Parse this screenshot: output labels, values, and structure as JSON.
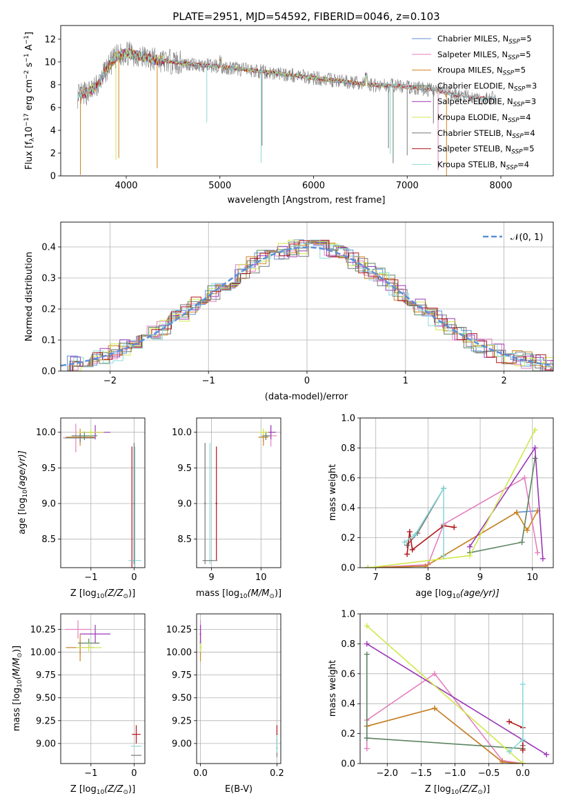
{
  "figure": {
    "title": "PLATE=2951, MJD=54592, FIBERID=0046, z=0.103"
  },
  "colors": {
    "Chabrier MILES": "#5b8fd6",
    "Salpeter MILES": "#e47fbf",
    "Kroupa MILES": "#d0821d",
    "Chabrier ELODIE": "#5d8461",
    "Salpeter ELODIE": "#9a36b5",
    "Kroupa ELODIE": "#cfe84b",
    "Chabrier STELIB": "#777777",
    "Salpeter STELIB": "#b01419",
    "Kroupa STELIB": "#8ad8d8",
    "gauss": "#5b8fd6"
  },
  "chart_data": [
    {
      "id": "spectrum",
      "type": "line",
      "title": "PLATE=2951, MJD=54592, FIBERID=0046, z=0.103",
      "xlabel": "wavelength [Angstrom, rest frame]",
      "ylabel": "Flux [f_λ 10^-17 erg cm^-2 s^-1 A^-1]",
      "xlim": [
        3300,
        8560
      ],
      "ylim": [
        0,
        13.2
      ],
      "xticks": [
        4000,
        5000,
        6000,
        7000,
        8000
      ],
      "yticks": [
        0,
        2,
        4,
        6,
        8,
        10,
        12
      ],
      "legend_position": "top-right",
      "continuum": {
        "x": [
          3480,
          3550,
          3650,
          3700,
          3800,
          3900,
          4000,
          4100,
          4200,
          4300,
          4500,
          4700,
          5000,
          5300,
          5600,
          6000,
          6300,
          6600,
          6900,
          7000,
          7100,
          7200,
          7300,
          7400,
          7600,
          7800
        ],
        "y": [
          7.0,
          7.2,
          7.6,
          8.0,
          9.5,
          10.5,
          10.8,
          10.6,
          10.4,
          10.2,
          10.0,
          9.8,
          9.6,
          9.3,
          9.0,
          8.6,
          8.3,
          8.0,
          7.9,
          7.8,
          7.7,
          7.6,
          7.6,
          7.3,
          7.0,
          6.8
        ]
      },
      "series": [
        {
          "name": "Chabrier MILES",
          "label": "Chabrier MILES, N",
          "sub": "SSP",
          "n": "=5"
        },
        {
          "name": "Salpeter MILES",
          "label": "Salpeter MILES, N",
          "sub": "SSP",
          "n": "=5"
        },
        {
          "name": "Kroupa MILES",
          "label": "Kroupa MILES, N",
          "sub": "SSP",
          "n": "=5"
        },
        {
          "name": "Chabrier ELODIE",
          "label": "Chabrier ELODIE, N",
          "sub": "SSP",
          "n": "=3"
        },
        {
          "name": "Salpeter ELODIE",
          "label": "Salpeter ELODIE, N",
          "sub": "SSP",
          "n": "=3"
        },
        {
          "name": "Kroupa ELODIE",
          "label": "Kroupa ELODIE, N",
          "sub": "SSP",
          "n": "=4"
        },
        {
          "name": "Chabrier STELIB",
          "label": "Chabrier STELIB, N",
          "sub": "SSP",
          "n": "=4"
        },
        {
          "name": "Salpeter STELIB",
          "label": "Salpeter STELIB, N",
          "sub": "SSP",
          "n": "=5"
        },
        {
          "name": "Kroupa STELIB",
          "label": "Kroupa STELIB, N",
          "sub": "SSP",
          "n": "=4"
        }
      ]
    },
    {
      "id": "residuals",
      "type": "line",
      "xlabel": "(data-model)/error",
      "ylabel": "Normed distribution",
      "xlim": [
        -2.5,
        2.5
      ],
      "ylim": [
        0,
        0.48
      ],
      "xticks": [
        -2,
        -1,
        0,
        1,
        2
      ],
      "yticks": [
        0.0,
        0.1,
        0.2,
        0.3,
        0.4
      ],
      "grid": true,
      "legend_position": "top-right",
      "legend": "𝒩(0, 1)",
      "gaussian": {
        "mean": 0,
        "sigma": 1
      }
    },
    {
      "id": "z-age",
      "type": "scatter",
      "xlabel": "Z [log10(Z/Z⊙)]",
      "ylabel": "age [log10(age/yr)]",
      "xlim": [
        -1.7,
        0.25
      ],
      "ylim": [
        8.1,
        10.2
      ],
      "xticks": [
        -1,
        0
      ],
      "yticks": [
        8.5,
        9.0,
        9.5,
        10.0
      ],
      "grid": true,
      "points": [
        {
          "series": "Chabrier MILES",
          "x": -1.25,
          "y": 9.93,
          "xerr": 0.33,
          "yerr": 0.06
        },
        {
          "series": "Salpeter MILES",
          "x": -1.35,
          "y": 9.92,
          "xerr": 0.3,
          "yerr": 0.2
        },
        {
          "series": "Kroupa MILES",
          "x": -1.25,
          "y": 9.93,
          "xerr": 0.33,
          "yerr": 0.12
        },
        {
          "series": "Chabrier ELODIE",
          "x": -1.15,
          "y": 9.95,
          "xerr": 0.3,
          "yerr": 0.06
        },
        {
          "series": "Salpeter ELODIE",
          "x": -0.9,
          "y": 10.0,
          "xerr": 0.35,
          "yerr": 0.1
        },
        {
          "series": "Kroupa ELODIE",
          "x": -1.0,
          "y": 10.0,
          "xerr": 0.3,
          "yerr": 0.05
        },
        {
          "series": "Chabrier STELIB",
          "x": -1.25,
          "y": 9.92,
          "xerr": 0.35,
          "yerr": 0.06
        },
        {
          "series": "Salpeter STELIB",
          "x": -0.05,
          "y": 8.2,
          "xerr": 0.03,
          "yerr": 1.6
        },
        {
          "series": "Kroupa STELIB",
          "x": 0.02,
          "y": 8.2,
          "xerr": 0.15,
          "yerr": 1.6
        },
        {
          "series": "Chabrier STELIB",
          "x": 0.0,
          "y": 9.0,
          "xerr": 0.02,
          "yerr": 0.85
        }
      ]
    },
    {
      "id": "mass-age",
      "type": "scatter",
      "xlabel": "mass [log10(M/M⊙)]",
      "ylabel": "",
      "xlim": [
        8.7,
        10.4
      ],
      "ylim": [
        8.1,
        10.2
      ],
      "xticks": [
        9,
        10
      ],
      "yticks": [
        8.5,
        9.0,
        9.5,
        10.0
      ],
      "grid": true,
      "points": [
        {
          "series": "Chabrier MILES",
          "x": 10.05,
          "y": 9.93,
          "xerr": 0.1,
          "yerr": 0.06
        },
        {
          "series": "Salpeter MILES",
          "x": 10.2,
          "y": 9.95,
          "xerr": 0.12,
          "yerr": 0.15
        },
        {
          "series": "Kroupa MILES",
          "x": 10.05,
          "y": 9.93,
          "xerr": 0.1,
          "yerr": 0.12
        },
        {
          "series": "Chabrier ELODIE",
          "x": 10.1,
          "y": 9.95,
          "xerr": 0.08,
          "yerr": 0.06
        },
        {
          "series": "Salpeter ELODIE",
          "x": 10.2,
          "y": 10.0,
          "xerr": 0.1,
          "yerr": 0.1
        },
        {
          "series": "Kroupa ELODIE",
          "x": 10.05,
          "y": 10.0,
          "xerr": 0.1,
          "yerr": 0.05
        },
        {
          "series": "Chabrier STELIB",
          "x": 8.87,
          "y": 9.0,
          "xerr": 0.02,
          "yerr": 0.85
        },
        {
          "series": "Salpeter STELIB",
          "x": 9.1,
          "y": 9.0,
          "xerr": 0.02,
          "yerr": 0.8
        },
        {
          "series": "Kroupa STELIB",
          "x": 8.97,
          "y": 9.0,
          "xerr": 0.02,
          "yerr": 0.85
        },
        {
          "series": "Chabrier STELIB",
          "x": 8.97,
          "y": 8.2,
          "xerr": 0.15,
          "yerr": 0.0
        }
      ]
    },
    {
      "id": "weight-age",
      "type": "line",
      "xlabel": "age [log10(age/yr)]",
      "ylabel": "mass weight",
      "xlim": [
        6.7,
        10.4
      ],
      "ylim": [
        0,
        1.0
      ],
      "xticks": [
        7,
        8,
        9,
        10
      ],
      "yticks": [
        0.0,
        0.2,
        0.4,
        0.6,
        0.8,
        1.0
      ],
      "grid": true,
      "series": [
        {
          "name": "Chabrier MILES",
          "x": [
            6.85,
            7.95,
            8.3,
            9.7,
            10.1
          ],
          "y": [
            0.0,
            0.01,
            0.08,
            0.37,
            0.38
          ]
        },
        {
          "name": "Salpeter MILES",
          "x": [
            6.85,
            8.0,
            8.3,
            9.85,
            10.1
          ],
          "y": [
            0.0,
            0.02,
            0.29,
            0.6,
            0.1
          ]
        },
        {
          "name": "Kroupa MILES",
          "x": [
            6.85,
            7.95,
            8.3,
            9.7,
            9.9,
            10.1
          ],
          "y": [
            0.0,
            0.01,
            0.08,
            0.37,
            0.25,
            0.38
          ]
        },
        {
          "name": "Chabrier ELODIE",
          "x": [
            8.8,
            9.8,
            10.05
          ],
          "y": [
            0.1,
            0.17,
            0.73
          ]
        },
        {
          "name": "Salpeter ELODIE",
          "x": [
            8.8,
            10.05,
            10.2
          ],
          "y": [
            0.14,
            0.8,
            0.06
          ]
        },
        {
          "name": "Kroupa ELODIE",
          "x": [
            6.85,
            8.8,
            10.05
          ],
          "y": [
            0.0,
            0.08,
            0.92
          ]
        },
        {
          "name": "Chabrier STELIB",
          "x": [
            7.6,
            7.8,
            8.3
          ],
          "y": [
            0.15,
            0.23,
            0.53
          ]
        },
        {
          "name": "Salpeter STELIB",
          "x": [
            7.6,
            7.65,
            7.7,
            8.3,
            8.5
          ],
          "y": [
            0.09,
            0.24,
            0.12,
            0.28,
            0.27
          ]
        },
        {
          "name": "Kroupa STELIB",
          "x": [
            7.55,
            7.75,
            8.3,
            8.3
          ],
          "y": [
            0.17,
            0.22,
            0.53,
            0.08
          ]
        }
      ]
    },
    {
      "id": "z-mass",
      "type": "scatter",
      "xlabel": "Z [log10(Z/Z⊙)]",
      "ylabel": "mass [log10(M/M⊙)]",
      "xlim": [
        -1.7,
        0.25
      ],
      "ylim": [
        8.78,
        10.42
      ],
      "xticks": [
        -1,
        0
      ],
      "yticks": [
        9.0,
        9.25,
        9.5,
        9.75,
        10.0,
        10.25
      ],
      "grid": true,
      "points": [
        {
          "series": "Chabrier MILES",
          "x": -1.25,
          "y": 10.05,
          "xerr": 0.33,
          "yerr": 0.08
        },
        {
          "series": "Salpeter MILES",
          "x": -1.3,
          "y": 10.25,
          "xerr": 0.3,
          "yerr": 0.1
        },
        {
          "series": "Kroupa MILES",
          "x": -1.25,
          "y": 10.05,
          "xerr": 0.33,
          "yerr": 0.15
        },
        {
          "series": "Chabrier ELODIE",
          "x": -1.05,
          "y": 10.1,
          "xerr": 0.25,
          "yerr": 0.05
        },
        {
          "series": "Salpeter ELODIE",
          "x": -0.9,
          "y": 10.2,
          "xerr": 0.35,
          "yerr": 0.1
        },
        {
          "series": "Kroupa ELODIE",
          "x": -1.05,
          "y": 10.05,
          "xerr": 0.3,
          "yerr": 0.05
        },
        {
          "series": "Chabrier STELIB",
          "x": 0.05,
          "y": 8.87,
          "xerr": 0.12,
          "yerr": 0.0
        },
        {
          "series": "Salpeter STELIB",
          "x": 0.05,
          "y": 9.1,
          "xerr": 0.1,
          "yerr": 0.1
        },
        {
          "series": "Kroupa STELIB",
          "x": 0.05,
          "y": 8.97,
          "xerr": 0.12,
          "yerr": 0.0
        }
      ]
    },
    {
      "id": "ebv-mass",
      "type": "scatter",
      "xlabel": "E(B-V)",
      "ylabel": "",
      "xlim": [
        -0.01,
        0.21
      ],
      "ylim": [
        8.78,
        10.42
      ],
      "xticks": [
        0.0,
        0.2
      ],
      "yticks": [
        9.0,
        9.25,
        9.5,
        9.75,
        10.0,
        10.25
      ],
      "grid": true,
      "points": [
        {
          "series": "Chabrier MILES",
          "x": 0.0,
          "y": 10.05,
          "xerr": 0.002,
          "yerr": 0.08
        },
        {
          "series": "Salpeter MILES",
          "x": 0.0,
          "y": 10.25,
          "xerr": 0.002,
          "yerr": 0.1
        },
        {
          "series": "Kroupa MILES",
          "x": 0.0,
          "y": 10.05,
          "xerr": 0.002,
          "yerr": 0.15
        },
        {
          "series": "Chabrier ELODIE",
          "x": 0.0,
          "y": 10.1,
          "xerr": 0.002,
          "yerr": 0.05
        },
        {
          "series": "Salpeter ELODIE",
          "x": 0.0,
          "y": 10.2,
          "xerr": 0.002,
          "yerr": 0.1
        },
        {
          "series": "Kroupa ELODIE",
          "x": 0.0,
          "y": 10.05,
          "xerr": 0.002,
          "yerr": 0.05
        },
        {
          "series": "Chabrier STELIB",
          "x": 0.2,
          "y": 8.95,
          "xerr": 0.002,
          "yerr": 0.1
        },
        {
          "series": "Salpeter STELIB",
          "x": 0.2,
          "y": 9.1,
          "xerr": 0.002,
          "yerr": 0.1
        },
        {
          "series": "Kroupa STELIB",
          "x": 0.2,
          "y": 9.0,
          "xerr": 0.002,
          "yerr": 0.1
        }
      ]
    },
    {
      "id": "weight-z",
      "type": "line",
      "xlabel": "Z [log10(Z/Z⊙)]",
      "ylabel": "mass weight",
      "xlim": [
        -2.4,
        0.45
      ],
      "ylim": [
        0,
        1.0
      ],
      "xticks": [
        -2.0,
        -1.5,
        -1.0,
        -0.5,
        0.0
      ],
      "yticks": [
        0.0,
        0.2,
        0.4,
        0.6,
        0.8,
        1.0
      ],
      "grid": true,
      "series": [
        {
          "name": "Chabrier MILES",
          "x": [
            -2.3,
            -1.3,
            -0.3,
            0.0
          ],
          "y": [
            0.25,
            0.37,
            0.01,
            0.0
          ]
        },
        {
          "name": "Salpeter MILES",
          "x": [
            -2.3,
            -2.3,
            -1.3,
            -0.3,
            0.0
          ],
          "y": [
            0.1,
            0.29,
            0.6,
            0.02,
            0.0
          ]
        },
        {
          "name": "Kroupa MILES",
          "x": [
            -2.3,
            -1.3,
            -0.3,
            0.0
          ],
          "y": [
            0.25,
            0.37,
            0.01,
            0.0
          ]
        },
        {
          "name": "Chabrier ELODIE",
          "x": [
            -2.3,
            -2.3,
            -2.3,
            0.0
          ],
          "y": [
            0.73,
            0.17,
            0.17,
            0.1
          ]
        },
        {
          "name": "Salpeter ELODIE",
          "x": [
            -2.3,
            0.35
          ],
          "y": [
            0.8,
            0.06
          ]
        },
        {
          "name": "Kroupa ELODIE",
          "x": [
            -2.3,
            0.0
          ],
          "y": [
            0.92,
            0.0
          ]
        },
        {
          "name": "Chabrier STELIB",
          "x": [
            0.0,
            0.0
          ],
          "y": [
            0.12,
            0.15
          ]
        },
        {
          "name": "Salpeter STELIB",
          "x": [
            -0.2,
            0.0,
            0.0
          ],
          "y": [
            0.28,
            0.24,
            0.09
          ]
        },
        {
          "name": "Kroupa STELIB",
          "x": [
            -0.2,
            0.0,
            0.0
          ],
          "y": [
            0.08,
            0.16,
            0.53
          ]
        }
      ]
    }
  ]
}
